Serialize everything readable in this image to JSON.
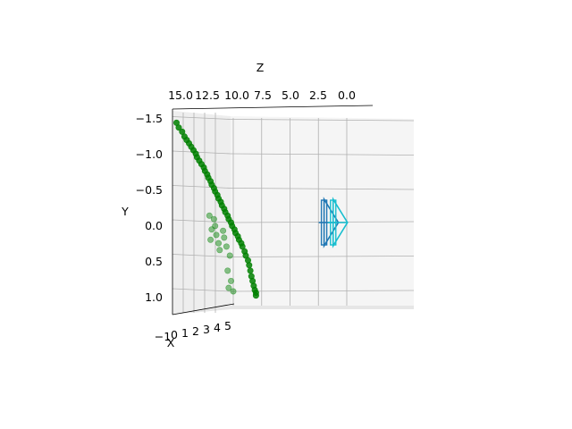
{
  "chart_data": {
    "type": "scatter",
    "projection": "3d",
    "axis_labels": {
      "x": "X",
      "y": "Y",
      "z": "Z"
    },
    "z_ticks": [
      "15.0",
      "12.5",
      "10.0",
      "7.5",
      "5.0",
      "2.5",
      "0.0"
    ],
    "y_ticks": [
      "−1.5",
      "−1.0",
      "−0.5",
      "0.0",
      "0.5",
      "1.0"
    ],
    "x_ticks": [
      "−1",
      "0",
      "1",
      "2",
      "3",
      "4",
      "5"
    ],
    "y_range": [
      1.2,
      -1.6
    ],
    "z_range": [
      16,
      0
    ],
    "grid": true,
    "colors": {
      "points": "#008000",
      "camera_primary": "#1f77b4",
      "camera_secondary": "#17becf",
      "pane": "#f2f2f2",
      "grid": "#b0b0b0"
    },
    "series": [
      {
        "marker": "circle",
        "color": "#008000",
        "points": [
          {
            "z": 15.0,
            "y": -1.45
          },
          {
            "z": 14.8,
            "y": -1.38
          },
          {
            "z": 14.5,
            "y": -1.32
          },
          {
            "z": 14.3,
            "y": -1.25
          },
          {
            "z": 14.1,
            "y": -1.2
          },
          {
            "z": 13.9,
            "y": -1.15
          },
          {
            "z": 13.7,
            "y": -1.1
          },
          {
            "z": 13.5,
            "y": -1.05
          },
          {
            "z": 13.3,
            "y": -1.0
          },
          {
            "z": 13.2,
            "y": -0.95
          },
          {
            "z": 13.0,
            "y": -0.9
          },
          {
            "z": 12.8,
            "y": -0.85
          },
          {
            "z": 12.6,
            "y": -0.8
          },
          {
            "z": 12.5,
            "y": -0.75
          },
          {
            "z": 12.3,
            "y": -0.7
          },
          {
            "z": 12.2,
            "y": -0.65
          },
          {
            "z": 12.0,
            "y": -0.6
          },
          {
            "z": 11.9,
            "y": -0.55
          },
          {
            "z": 11.7,
            "y": -0.5
          },
          {
            "z": 11.6,
            "y": -0.45
          },
          {
            "z": 11.4,
            "y": -0.4
          },
          {
            "z": 11.3,
            "y": -0.35
          },
          {
            "z": 11.1,
            "y": -0.3
          },
          {
            "z": 11.0,
            "y": -0.25
          },
          {
            "z": 10.8,
            "y": -0.2
          },
          {
            "z": 10.7,
            "y": -0.15
          },
          {
            "z": 10.5,
            "y": -0.1
          },
          {
            "z": 10.4,
            "y": -0.05
          },
          {
            "z": 10.2,
            "y": 0.0
          },
          {
            "z": 10.1,
            "y": 0.05
          },
          {
            "z": 9.9,
            "y": 0.1
          },
          {
            "z": 9.8,
            "y": 0.15
          },
          {
            "z": 9.6,
            "y": 0.2
          },
          {
            "z": 9.5,
            "y": 0.25
          },
          {
            "z": 9.3,
            "y": 0.3
          },
          {
            "z": 9.2,
            "y": 0.35
          },
          {
            "z": 9.0,
            "y": 0.42
          },
          {
            "z": 8.9,
            "y": 0.48
          },
          {
            "z": 8.7,
            "y": 0.55
          },
          {
            "z": 8.6,
            "y": 0.62
          },
          {
            "z": 8.5,
            "y": 0.7
          },
          {
            "z": 8.4,
            "y": 0.78
          },
          {
            "z": 8.3,
            "y": 0.85
          },
          {
            "z": 8.2,
            "y": 0.92
          },
          {
            "z": 8.1,
            "y": 0.98
          },
          {
            "z": 8.0,
            "y": 1.02
          },
          {
            "z": 8.0,
            "y": 1.06
          },
          {
            "z": 12.1,
            "y": -0.1
          },
          {
            "z": 11.7,
            "y": -0.05
          },
          {
            "z": 11.9,
            "y": 0.1
          },
          {
            "z": 11.5,
            "y": 0.18
          },
          {
            "z": 12.0,
            "y": 0.25
          },
          {
            "z": 11.3,
            "y": 0.3
          },
          {
            "z": 11.6,
            "y": 0.05
          },
          {
            "z": 10.9,
            "y": 0.12
          },
          {
            "z": 10.6,
            "y": 0.35
          },
          {
            "z": 10.3,
            "y": 0.48
          },
          {
            "z": 10.5,
            "y": 0.7
          },
          {
            "z": 10.2,
            "y": 0.85
          },
          {
            "z": 10.4,
            "y": 0.95
          },
          {
            "z": 10.0,
            "y": 1.0
          },
          {
            "z": 11.2,
            "y": 0.4
          },
          {
            "z": 10.8,
            "y": 0.22
          }
        ]
      }
    ],
    "camera_markers": [
      {
        "name": "",
        "color": "#1f77b4",
        "z": 2.0,
        "y": 0.0
      },
      {
        "name": "",
        "color": "#17becf",
        "z": 1.2,
        "y": 0.0
      }
    ]
  }
}
